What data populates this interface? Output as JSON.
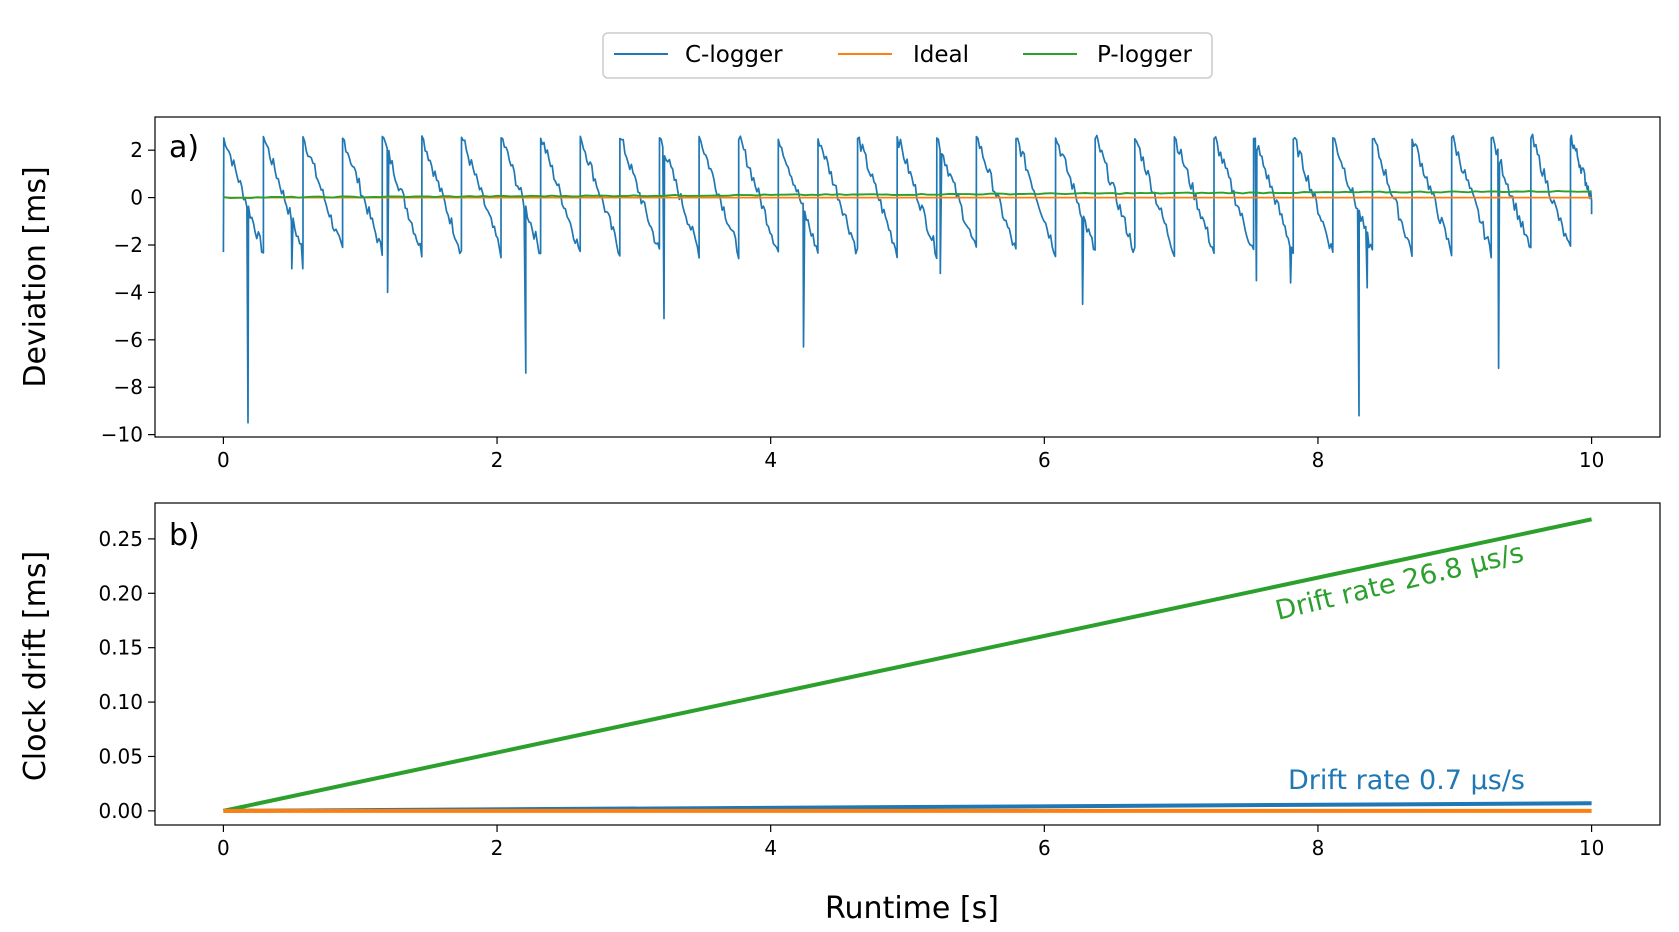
{
  "legend": {
    "placement": "top-center",
    "entries": [
      {
        "label": "C-logger",
        "color": "#1f77b4"
      },
      {
        "label": "Ideal",
        "color": "#ff7f0e"
      },
      {
        "label": "P-logger",
        "color": "#2ca02c"
      }
    ]
  },
  "xlabel": "Runtime [s]",
  "chart_data": [
    {
      "panel": "a)",
      "type": "line",
      "ylabel": "Deviation [ms]",
      "xlim": [
        -0.5,
        10.5
      ],
      "ylim": [
        -10.1,
        3.4
      ],
      "xticks": [
        0,
        2,
        4,
        6,
        8,
        10
      ],
      "yticks": [
        -10,
        -8,
        -6,
        -4,
        -2,
        0,
        2
      ],
      "sawtooth_period_s": 0.289,
      "sawtooth_peak_ms": 2.6,
      "sawtooth_trough_ms": -2.3,
      "spikes": [
        {
          "x": 0.18,
          "y": -9.5
        },
        {
          "x": 0.5,
          "y": -3.0
        },
        {
          "x": 0.58,
          "y": -3.0
        },
        {
          "x": 1.2,
          "y": -4.0
        },
        {
          "x": 2.21,
          "y": -7.4
        },
        {
          "x": 3.22,
          "y": -5.1
        },
        {
          "x": 4.24,
          "y": -6.3
        },
        {
          "x": 5.24,
          "y": -3.2
        },
        {
          "x": 6.28,
          "y": -4.5
        },
        {
          "x": 7.55,
          "y": -3.5
        },
        {
          "x": 7.8,
          "y": -3.6
        },
        {
          "x": 8.3,
          "y": -9.2
        },
        {
          "x": 8.36,
          "y": -3.8
        },
        {
          "x": 9.32,
          "y": -7.2
        }
      ],
      "series": [
        {
          "name": "C-logger",
          "color": "#1f77b4",
          "x": [
            0,
            10
          ],
          "y": [
            -2.3,
            -0.7
          ]
        },
        {
          "name": "Ideal",
          "color": "#ff7f0e",
          "x": [
            0,
            10
          ],
          "y": [
            0,
            0
          ]
        },
        {
          "name": "P-logger",
          "color": "#2ca02c",
          "x": [
            0,
            10
          ],
          "y": [
            0,
            0.27
          ]
        }
      ],
      "grid": false
    },
    {
      "panel": "b)",
      "type": "line",
      "ylabel": "Clock drift [ms]",
      "xlim": [
        -0.5,
        10.5
      ],
      "ylim": [
        -0.013,
        0.283
      ],
      "xticks": [
        0,
        2,
        4,
        6,
        8,
        10
      ],
      "yticks": [
        0.0,
        0.05,
        0.1,
        0.15,
        0.2,
        0.25
      ],
      "series": [
        {
          "name": "C-logger",
          "color": "#1f77b4",
          "x": [
            0,
            10
          ],
          "y": [
            0,
            0.007
          ]
        },
        {
          "name": "Ideal",
          "color": "#ff7f0e",
          "x": [
            0,
            10
          ],
          "y": [
            0,
            0
          ]
        },
        {
          "name": "P-logger",
          "color": "#2ca02c",
          "x": [
            0,
            10
          ],
          "y": [
            0,
            0.268
          ]
        }
      ],
      "annotations": [
        {
          "text": "Drift rate 26.8 μs/s",
          "color": "#2ca02c"
        },
        {
          "text": "Drift rate 0.7 μs/s",
          "color": "#1f77b4"
        }
      ],
      "grid": false
    }
  ]
}
